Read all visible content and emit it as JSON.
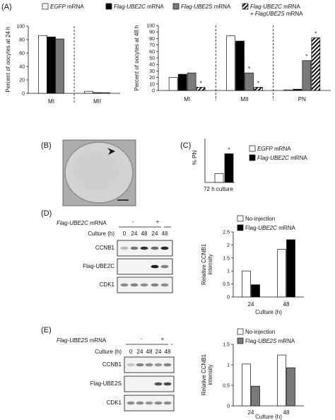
{
  "panels": {
    "A": "(A)",
    "B": "(B)",
    "C": "(C)",
    "D": "(D)",
    "E": "(E)"
  },
  "legend_A": [
    {
      "parts": [
        {
          "t": "EGFP",
          "i": true
        },
        {
          "t": " mRNA",
          "i": false
        }
      ],
      "color": "#ffffff",
      "pattern": "none"
    },
    {
      "parts": [
        {
          "t": "Flag-UBE2C",
          "i": true
        },
        {
          "t": " mRNA",
          "i": false
        }
      ],
      "color": "#000000",
      "pattern": "none"
    },
    {
      "parts": [
        {
          "t": "Flag-UBE2S",
          "i": true
        },
        {
          "t": " mRNA",
          "i": false
        }
      ],
      "color": "#7a7a7a",
      "pattern": "none"
    },
    {
      "parts": [
        {
          "t": "Flag-UBE2C",
          "i": true
        },
        {
          "t": " mRNA",
          "i": false
        }
      ],
      "line2": [
        {
          "t": "+ FlagUBE2S",
          "i": true
        },
        {
          "t": " mRNA",
          "i": false
        }
      ],
      "color": "#ffffff",
      "pattern": "hatch"
    }
  ],
  "legend_C": [
    {
      "parts": [
        {
          "t": "EGFP",
          "i": true
        },
        {
          "t": " mRNA",
          "i": false
        }
      ],
      "color": "#ffffff"
    },
    {
      "parts": [
        {
          "t": "Flag-UBE2C",
          "i": true
        },
        {
          "t": " mRNA",
          "i": false
        }
      ],
      "color": "#000000"
    }
  ],
  "legend_D": [
    {
      "parts": [
        {
          "t": "No-injection",
          "i": false
        }
      ],
      "color": "#ffffff"
    },
    {
      "parts": [
        {
          "t": "Flag-",
          "i": false
        },
        {
          "t": "UBE2C",
          "i": true
        },
        {
          "t": " mRNA",
          "i": false
        }
      ],
      "color": "#000000"
    }
  ],
  "legend_E": [
    {
      "parts": [
        {
          "t": "No-injection",
          "i": false
        }
      ],
      "color": "#ffffff"
    },
    {
      "parts": [
        {
          "t": "Flag-",
          "i": false
        },
        {
          "t": "UBE2S",
          "i": true
        },
        {
          "t": " mRNA",
          "i": false
        }
      ],
      "color": "#7a7a7a"
    }
  ],
  "blot_D": {
    "header": "Flag-UBE2C mRNA",
    "minus": "-",
    "plus": "+",
    "culture_label": "Culture (h)",
    "lanes": [
      "0",
      "24",
      "48",
      "24",
      "48"
    ],
    "rows": [
      "CCNB1",
      "Flag-UBE2C",
      "CDK1"
    ]
  },
  "blot_E": {
    "header": "Flag-UBE2S mRNA",
    "minus": "-",
    "plus": "+",
    "culture_label": "Culture (h)",
    "lanes": [
      "0",
      "24",
      "48",
      "24",
      "48"
    ],
    "rows": [
      "CCNB1",
      "Flag-UBE2S",
      "CDK1"
    ]
  },
  "chart_data": [
    {
      "id": "A1",
      "type": "bar",
      "categories": [
        "MI",
        "MII"
      ],
      "series": [
        {
          "name": "EGFP mRNA",
          "values": [
            86,
            3
          ]
        },
        {
          "name": "Flag-UBE2C mRNA",
          "values": [
            84,
            1
          ]
        },
        {
          "name": "Flag-UBE2S mRNA",
          "values": [
            81,
            1
          ]
        }
      ],
      "ylabel": "Percent of oocytes at 24 h",
      "ylim": [
        0,
        100
      ],
      "yticks": [
        "0",
        "20",
        "40",
        "60",
        "80",
        "100"
      ],
      "separators": true
    },
    {
      "id": "A2",
      "type": "bar",
      "categories": [
        "MI",
        "MII",
        "PN"
      ],
      "series": [
        {
          "name": "EGFP mRNA",
          "values": [
            20,
            84,
            1
          ]
        },
        {
          "name": "Flag-UBE2C mRNA",
          "values": [
            25,
            76,
            2
          ]
        },
        {
          "name": "Flag-UBE2S mRNA",
          "values": [
            27,
            27,
            46
          ]
        },
        {
          "name": "Flag-UBE2C mRNA + FlagUBE2S mRNA",
          "values": [
            5,
            5,
            81
          ]
        }
      ],
      "significance": [
        [
          false,
          false,
          false,
          true
        ],
        [
          false,
          false,
          true,
          true
        ],
        [
          false,
          false,
          true,
          true
        ]
      ],
      "star": "*",
      "ylabel": "Percent of oocytes at 48 h",
      "ylim": [
        0,
        100
      ],
      "yticks": [
        "0",
        "10",
        "20",
        "30",
        "40",
        "50",
        "60",
        "70",
        "80",
        "90",
        "100"
      ],
      "separators": true
    },
    {
      "id": "C",
      "type": "bar",
      "categories": [
        "72 h culture"
      ],
      "series": [
        {
          "name": "EGFP mRNA",
          "values": [
            11
          ]
        },
        {
          "name": "Flag-UBE2C mRNA",
          "values": [
            36
          ]
        }
      ],
      "significance": [
        [
          false,
          true
        ]
      ],
      "star": "*",
      "ylabel": "% PN",
      "ylim": [
        0,
        55
      ]
    },
    {
      "id": "D",
      "type": "bar",
      "categories": [
        "24",
        "48"
      ],
      "series": [
        {
          "name": "No-injection",
          "values": [
            1.0,
            1.83
          ]
        },
        {
          "name": "Flag-UBE2C mRNA",
          "values": [
            0.47,
            2.2
          ]
        }
      ],
      "ylabel": "Relative CCNB1 intensity",
      "xlabel": "Culture (h)",
      "ylim": [
        0,
        2.5
      ],
      "yticks": [
        "0",
        "0.5",
        "1",
        "1.5",
        "2",
        "2.5"
      ]
    },
    {
      "id": "E",
      "type": "bar",
      "categories": [
        "24",
        "48"
      ],
      "series": [
        {
          "name": "No-injection",
          "values": [
            1.02,
            1.24
          ]
        },
        {
          "name": "Flag-UBE2S mRNA",
          "values": [
            0.48,
            0.93
          ]
        }
      ],
      "ylabel": "Relative CCNB1 intensity",
      "xlabel": "Culture (h)",
      "ylim": [
        0,
        1.5
      ],
      "yticks": [
        "0",
        "0.5",
        "1",
        "1.5"
      ]
    }
  ]
}
